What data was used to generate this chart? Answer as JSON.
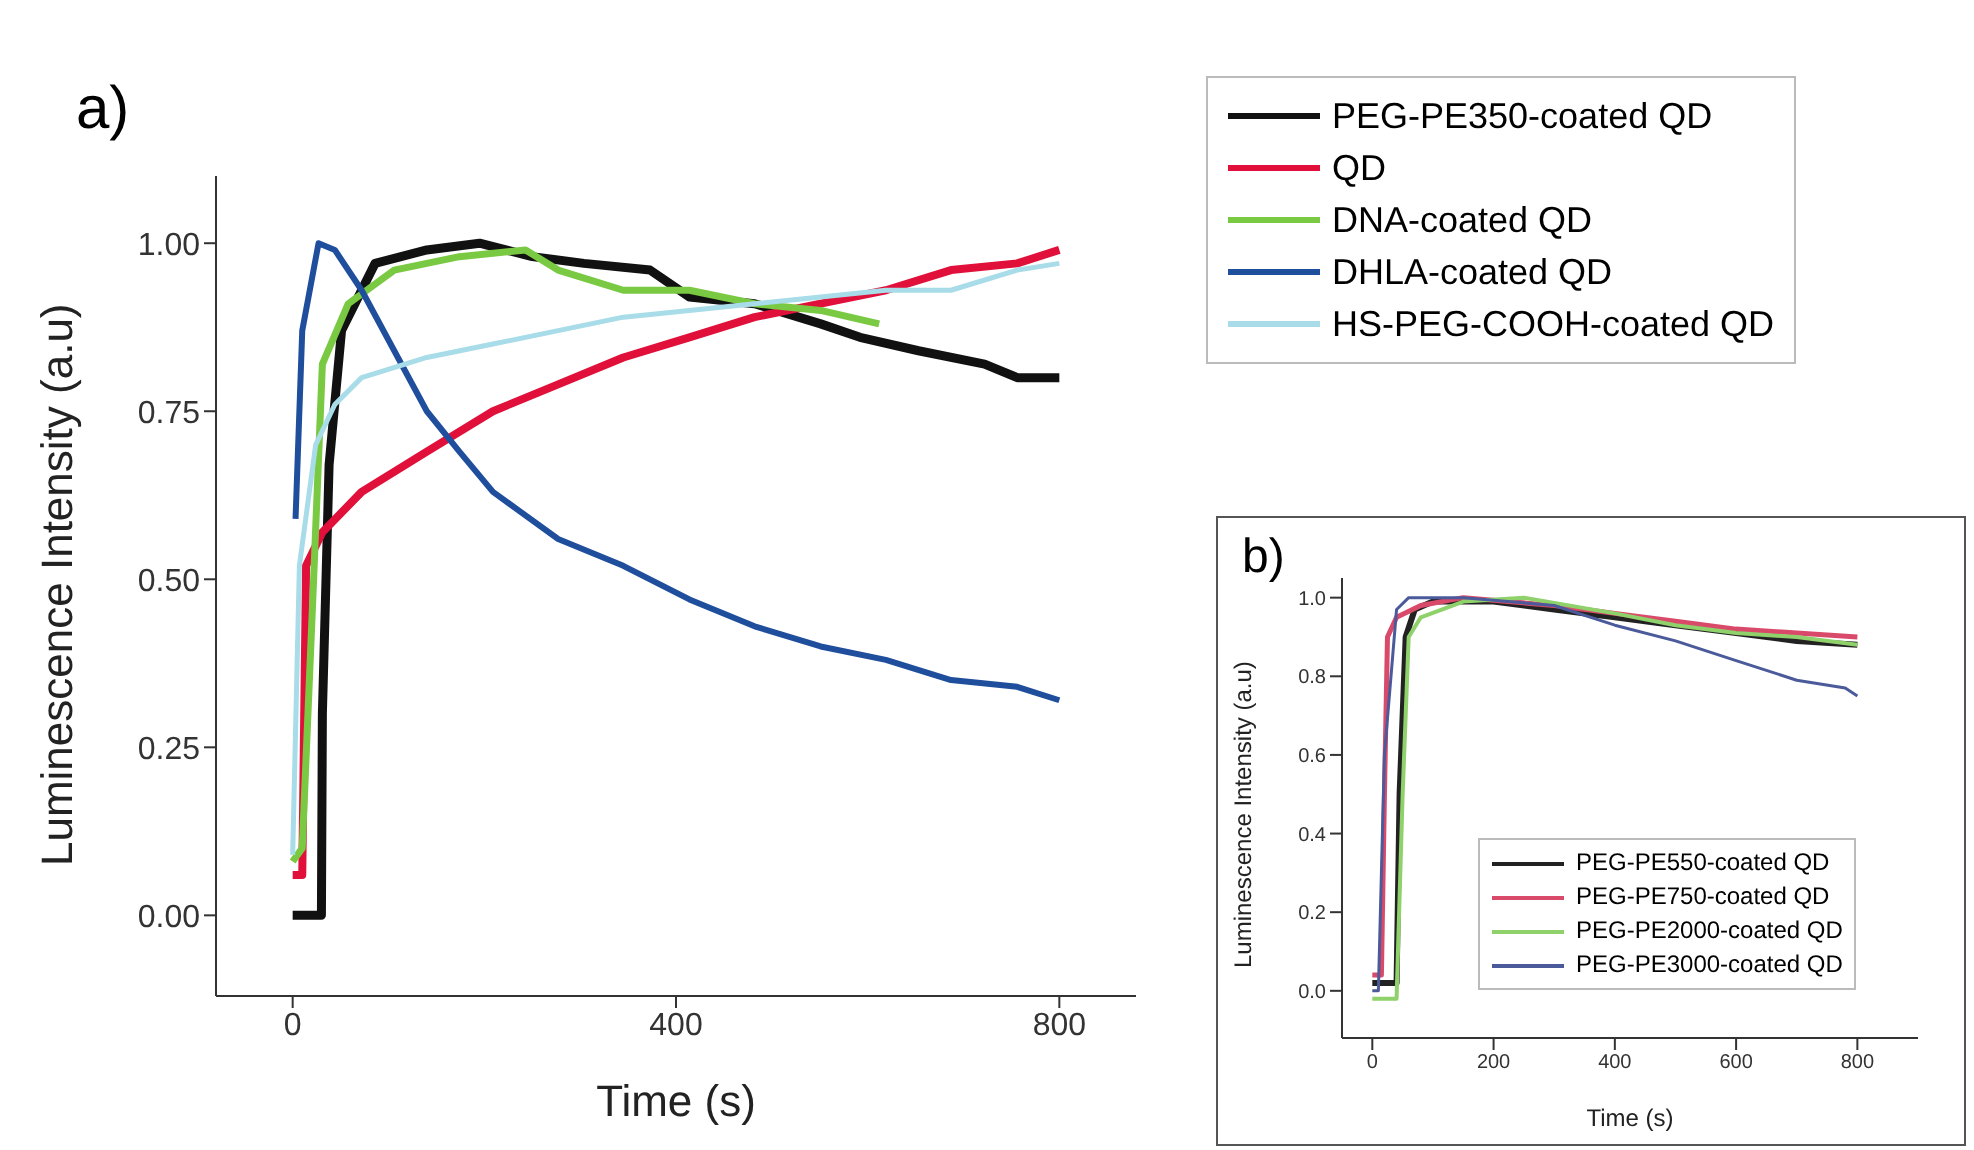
{
  "chart_data": [
    {
      "type": "line",
      "title": "a)",
      "xlabel": "Time (s)",
      "ylabel": "Luminescence Intensity (a.u)",
      "xlim": [
        -80,
        880
      ],
      "xticks": [
        0,
        400,
        800
      ],
      "ylim": [
        -0.12,
        1.1
      ],
      "yticks": [
        {
          "value": 0,
          "label": "0.00"
        },
        {
          "value": 0.25,
          "label": "0.25"
        },
        {
          "value": 0.5,
          "label": "0.50"
        },
        {
          "value": 0.75,
          "label": "0.75"
        },
        {
          "value": 1,
          "label": "1.00"
        }
      ],
      "legend": "top right",
      "grid": false,
      "marker": "none",
      "line_style": "solid",
      "series": [
        {
          "name": "PEG-PE350-coated QD",
          "color": "#111111",
          "x": [
            0,
            20,
            30,
            31,
            38,
            51,
            86,
            140,
            195,
            250,
            304,
            373,
            414,
            482,
            551,
            592,
            653,
            722,
            756,
            800
          ],
          "values": [
            0,
            0,
            0,
            0.3,
            0.67,
            0.87,
            0.97,
            0.99,
            1.0,
            0.98,
            0.97,
            0.96,
            0.92,
            0.91,
            0.88,
            0.86,
            0.84,
            0.82,
            0.8,
            0.8
          ]
        },
        {
          "name": "QD",
          "color": "#e0103a",
          "x": [
            0,
            10,
            14,
            31,
            72,
            140,
            209,
            277,
            345,
            414,
            482,
            551,
            619,
            687,
            756,
            800
          ],
          "values": [
            0.06,
            0.06,
            0.52,
            0.57,
            0.63,
            0.69,
            0.75,
            0.79,
            0.83,
            0.86,
            0.89,
            0.91,
            0.93,
            0.96,
            0.97,
            0.99
          ]
        },
        {
          "name": "DNA-coated QD",
          "color": "#7ac943",
          "x": [
            0,
            10,
            21,
            31,
            58,
            106,
            174,
            243,
            277,
            345,
            414,
            482,
            551,
            612
          ],
          "values": [
            0.08,
            0.1,
            0.47,
            0.82,
            0.91,
            0.96,
            0.98,
            0.99,
            0.96,
            0.93,
            0.93,
            0.91,
            0.9,
            0.88
          ]
        },
        {
          "name": "DHLA-coated QD",
          "color": "#1f4e9c",
          "x": [
            3,
            10,
            27,
            44,
            72,
            106,
            140,
            174,
            209,
            277,
            345,
            414,
            482,
            551,
            619,
            687,
            756,
            800
          ],
          "values": [
            0.59,
            0.87,
            1.0,
            0.99,
            0.93,
            0.84,
            0.75,
            0.69,
            0.63,
            0.56,
            0.52,
            0.47,
            0.43,
            0.4,
            0.38,
            0.35,
            0.34,
            0.32
          ]
        },
        {
          "name": "HS-PEG-COOH-coated QD",
          "color": "#a8dce8",
          "x": [
            0,
            7,
            24,
            44,
            72,
            140,
            209,
            277,
            345,
            414,
            482,
            551,
            619,
            687,
            756,
            800
          ],
          "values": [
            0.09,
            0.52,
            0.7,
            0.76,
            0.8,
            0.83,
            0.85,
            0.87,
            0.89,
            0.9,
            0.91,
            0.92,
            0.93,
            0.93,
            0.96,
            0.97
          ]
        }
      ]
    },
    {
      "type": "line",
      "title": "b)",
      "xlabel": "Time (s)",
      "ylabel": "Luminescence Intensity (a.u)",
      "xlim": [
        -50,
        900
      ],
      "xticks": [
        0,
        200,
        400,
        600,
        800
      ],
      "ylim": [
        -0.12,
        1.05
      ],
      "yticks": [
        {
          "value": 0,
          "label": "0.0"
        },
        {
          "value": 0.2,
          "label": "0.2"
        },
        {
          "value": 0.4,
          "label": "0.4"
        },
        {
          "value": 0.6,
          "label": "0.6"
        },
        {
          "value": 0.8,
          "label": "0.8"
        },
        {
          "value": 1,
          "label": "1.0"
        }
      ],
      "legend": "bottom right",
      "grid": false,
      "marker": "none",
      "line_style": "solid",
      "series": [
        {
          "name": "PEG-PE550-coated QD",
          "color": "#222222",
          "x": [
            0,
            20,
            40,
            45,
            55,
            70,
            100,
            200,
            300,
            400,
            500,
            600,
            700,
            800
          ],
          "values": [
            0.02,
            0.02,
            0.02,
            0.5,
            0.9,
            0.97,
            0.99,
            0.99,
            0.97,
            0.95,
            0.93,
            0.91,
            0.89,
            0.88
          ]
        },
        {
          "name": "PEG-PE750-coated QD",
          "color": "#d94a6a",
          "x": [
            0,
            15,
            20,
            25,
            40,
            80,
            150,
            300,
            400,
            500,
            600,
            700,
            800
          ],
          "values": [
            0.04,
            0.04,
            0.5,
            0.9,
            0.95,
            0.98,
            1.0,
            0.98,
            0.96,
            0.94,
            0.92,
            0.91,
            0.9
          ]
        },
        {
          "name": "PEG-PE2000-coated QD",
          "color": "#8fd16a",
          "x": [
            0,
            40,
            50,
            60,
            80,
            150,
            250,
            400,
            500,
            600,
            700,
            800
          ],
          "values": [
            -0.02,
            -0.02,
            0.5,
            0.9,
            0.95,
            0.99,
            1.0,
            0.96,
            0.93,
            0.91,
            0.9,
            0.88
          ]
        },
        {
          "name": "PEG-PE3000-coated QD",
          "color": "#4a5a9a",
          "x": [
            0,
            10,
            20,
            40,
            60,
            150,
            300,
            400,
            500,
            600,
            700,
            780,
            800
          ],
          "values": [
            0,
            0,
            0.6,
            0.97,
            1.0,
            1.0,
            0.98,
            0.93,
            0.89,
            0.84,
            0.79,
            0.77,
            0.75
          ]
        }
      ]
    }
  ]
}
